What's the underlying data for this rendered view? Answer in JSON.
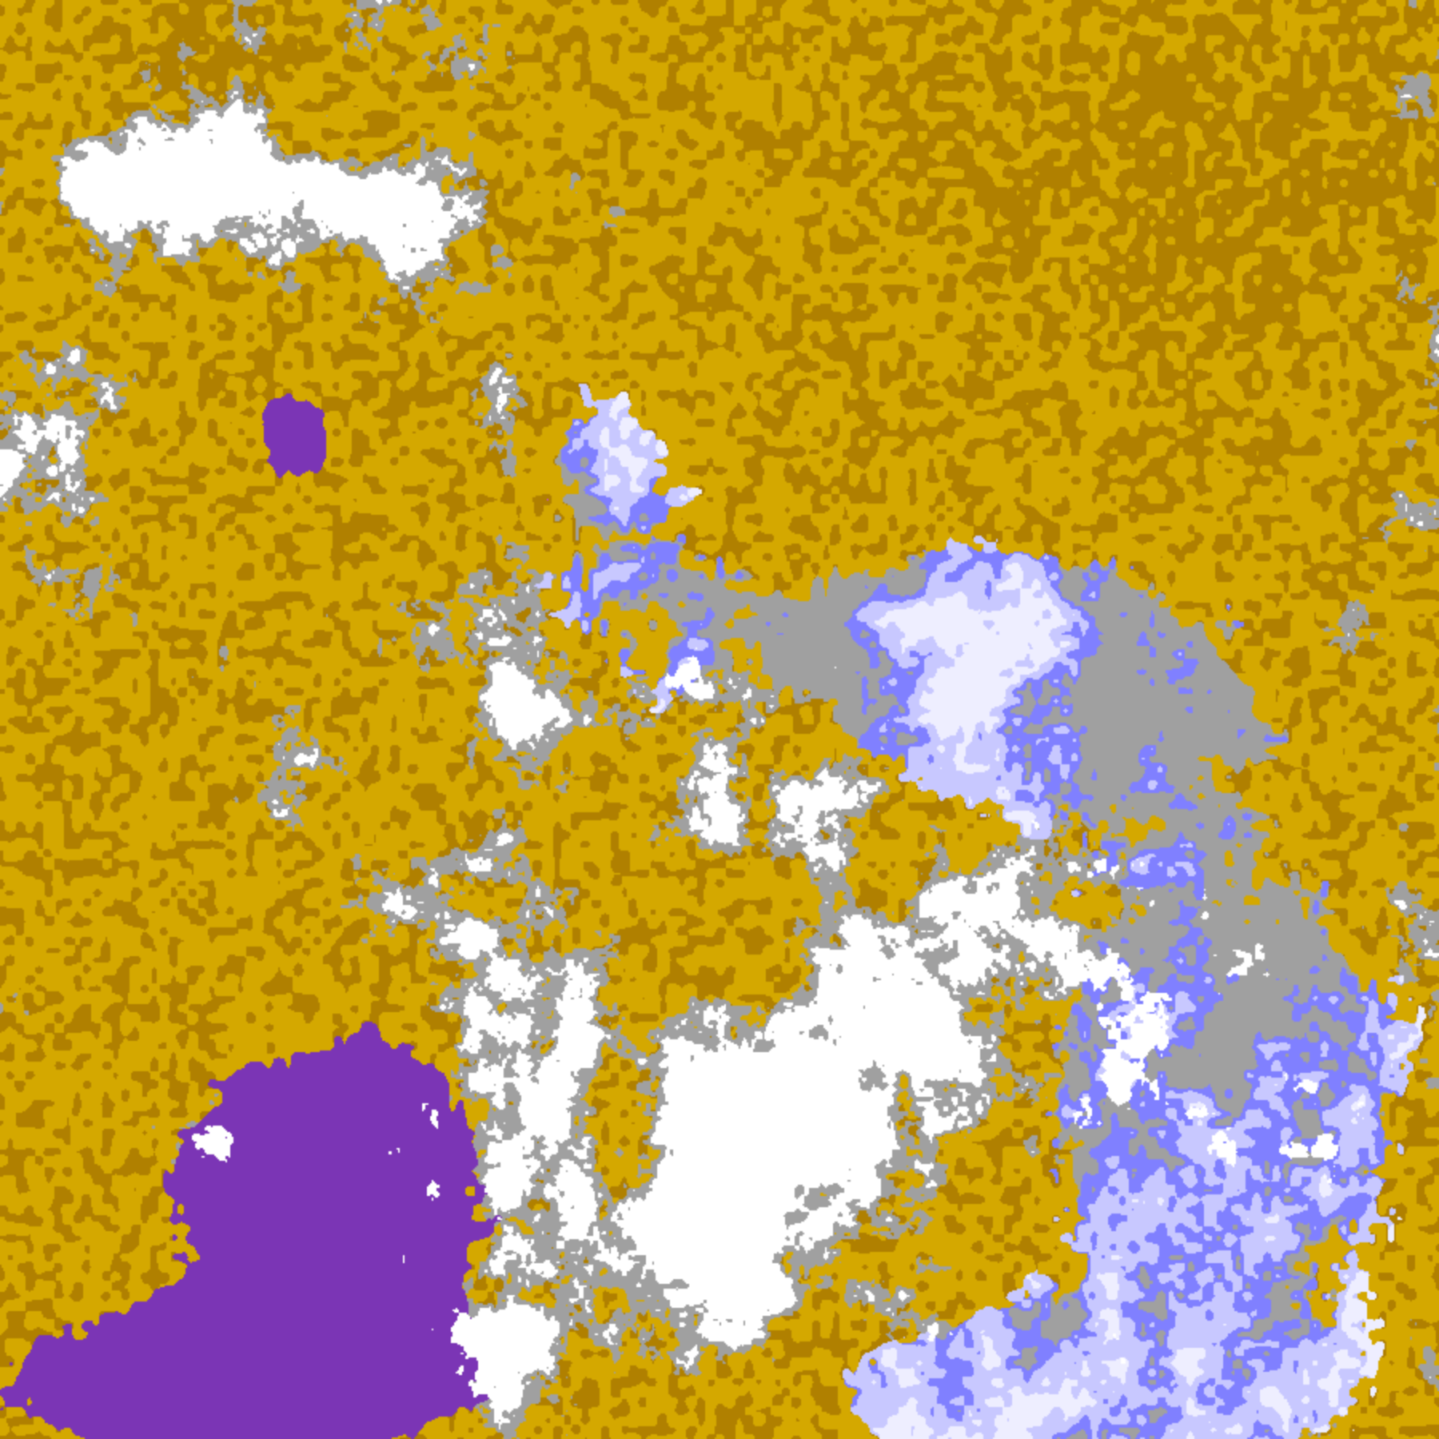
{
  "map": {
    "palette": {
      "background": "#ffffff",
      "gray": "#a0a0a0",
      "dark_gold": "#b08000",
      "gold": "#d4a800",
      "purple": "#7b35b5",
      "magenta": "#c850e0",
      "blue": "#8080ff",
      "lavender": "#c8c8ff",
      "pale_lavender": "#eeeeff"
    }
  }
}
